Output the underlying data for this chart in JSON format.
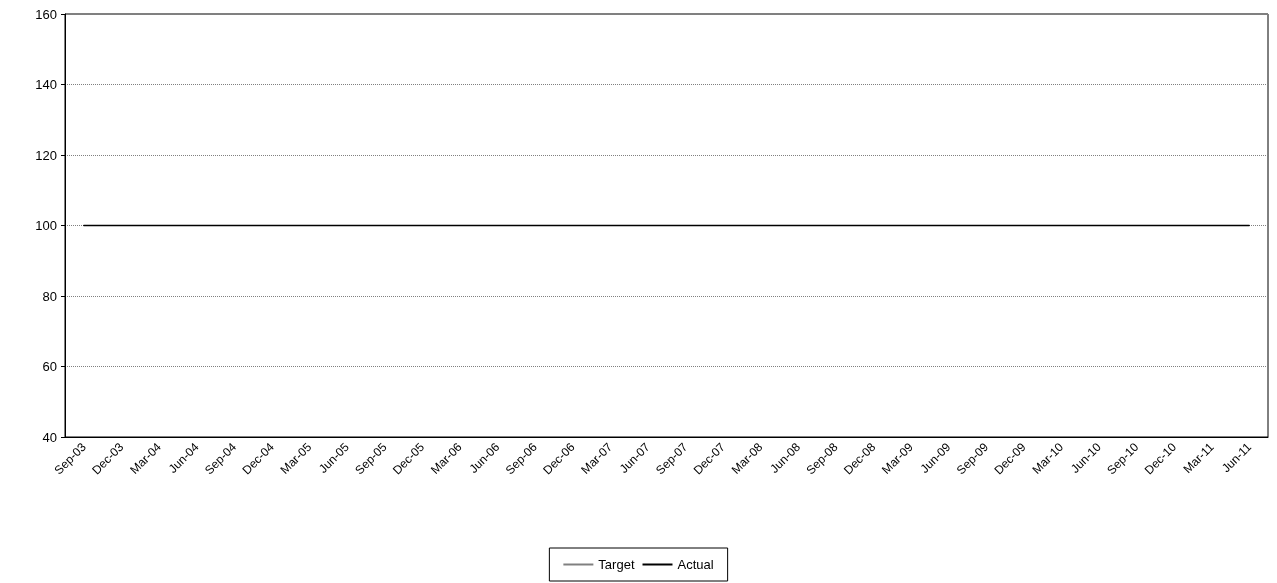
{
  "chart_data": {
    "type": "line",
    "categories": [
      "Sep-03",
      "Dec-03",
      "Mar-04",
      "Jun-04",
      "Sep-04",
      "Dec-04",
      "Mar-05",
      "Jun-05",
      "Sep-05",
      "Dec-05",
      "Mar-06",
      "Jun-06",
      "Sep-06",
      "Dec-06",
      "Mar-07",
      "Jun-07",
      "Sep-07",
      "Dec-07",
      "Mar-08",
      "Jun-08",
      "Sep-08",
      "Dec-08",
      "Mar-09",
      "Jun-09",
      "Sep-09",
      "Dec-09",
      "Mar-10",
      "Jun-10",
      "Sep-10",
      "Dec-10",
      "Mar-11",
      "Jun-11"
    ],
    "series": [
      {
        "name": "Target",
        "color": "#808080",
        "line_style": "dotted",
        "values": [
          null,
          null,
          null,
          null,
          null,
          null,
          null,
          null,
          null,
          null,
          null,
          null,
          null,
          null,
          null,
          null,
          null,
          null,
          null,
          null,
          null,
          null,
          null,
          null,
          null,
          null,
          null,
          null,
          null,
          null,
          null,
          null
        ]
      },
      {
        "name": "Actual",
        "color": "#000000",
        "line_style": "solid",
        "values": [
          100,
          100,
          100,
          100,
          100,
          100,
          100,
          100,
          100,
          100,
          100,
          100,
          100,
          100,
          100,
          100,
          100,
          100,
          100,
          100,
          100,
          100,
          100,
          100,
          100,
          100,
          100,
          100,
          100,
          100,
          100,
          100
        ]
      }
    ],
    "ylim": [
      40,
      160
    ],
    "yticks": [
      40,
      60,
      80,
      100,
      120,
      140,
      160
    ],
    "grid": "y",
    "legend": "bottom",
    "marker": "none"
  }
}
